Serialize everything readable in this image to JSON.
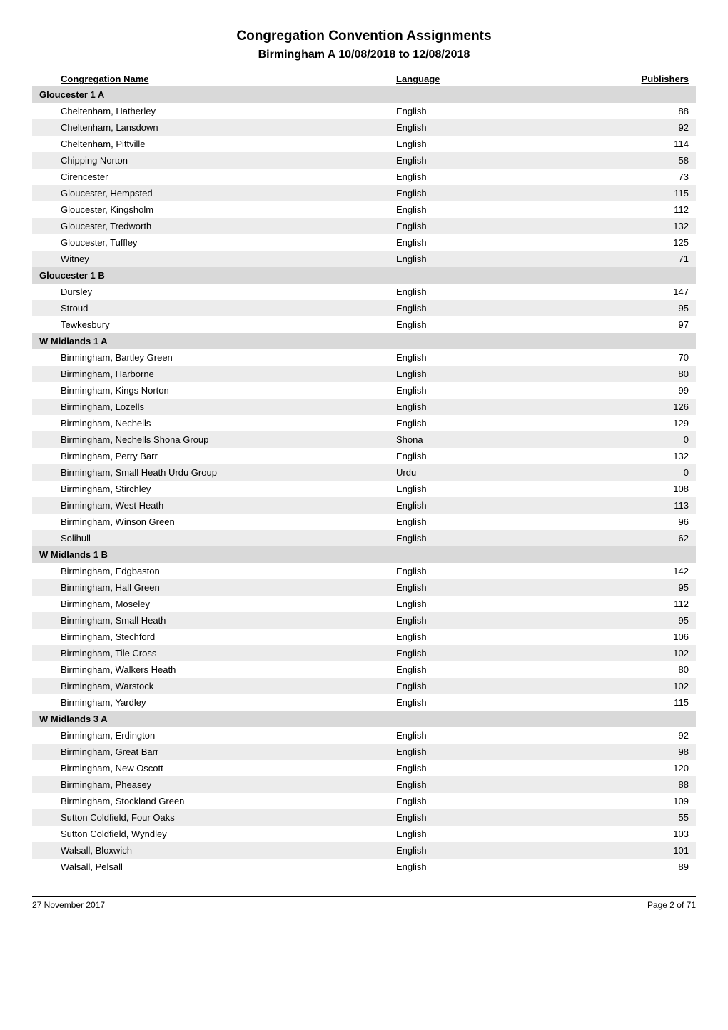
{
  "title": "Congregation Convention Assignments",
  "subtitle": "Birmingham A 10/08/2018 to 12/08/2018",
  "columns": {
    "name": "Congregation Name",
    "language": "Language",
    "publishers": "Publishers"
  },
  "colors": {
    "section_bg": "#d9d9d9",
    "row_shade_bg": "#ececec",
    "page_bg": "#ffffff",
    "text": "#000000"
  },
  "sections": [
    {
      "name": "Gloucester 1 A",
      "rows": [
        {
          "name": "Cheltenham, Hatherley",
          "language": "English",
          "publishers": 88,
          "shaded": false
        },
        {
          "name": "Cheltenham, Lansdown",
          "language": "English",
          "publishers": 92,
          "shaded": true
        },
        {
          "name": "Cheltenham, Pittville",
          "language": "English",
          "publishers": 114,
          "shaded": false
        },
        {
          "name": "Chipping Norton",
          "language": "English",
          "publishers": 58,
          "shaded": true
        },
        {
          "name": "Cirencester",
          "language": "English",
          "publishers": 73,
          "shaded": false
        },
        {
          "name": "Gloucester, Hempsted",
          "language": "English",
          "publishers": 115,
          "shaded": true
        },
        {
          "name": "Gloucester, Kingsholm",
          "language": "English",
          "publishers": 112,
          "shaded": false
        },
        {
          "name": "Gloucester, Tredworth",
          "language": "English",
          "publishers": 132,
          "shaded": true
        },
        {
          "name": "Gloucester, Tuffley",
          "language": "English",
          "publishers": 125,
          "shaded": false
        },
        {
          "name": "Witney",
          "language": "English",
          "publishers": 71,
          "shaded": true
        }
      ]
    },
    {
      "name": "Gloucester 1 B",
      "rows": [
        {
          "name": "Dursley",
          "language": "English",
          "publishers": 147,
          "shaded": false
        },
        {
          "name": "Stroud",
          "language": "English",
          "publishers": 95,
          "shaded": true
        },
        {
          "name": "Tewkesbury",
          "language": "English",
          "publishers": 97,
          "shaded": false
        }
      ]
    },
    {
      "name": "W Midlands 1 A",
      "rows": [
        {
          "name": "Birmingham, Bartley Green",
          "language": "English",
          "publishers": 70,
          "shaded": false
        },
        {
          "name": "Birmingham, Harborne",
          "language": "English",
          "publishers": 80,
          "shaded": true
        },
        {
          "name": "Birmingham, Kings Norton",
          "language": "English",
          "publishers": 99,
          "shaded": false
        },
        {
          "name": "Birmingham, Lozells",
          "language": "English",
          "publishers": 126,
          "shaded": true
        },
        {
          "name": "Birmingham, Nechells",
          "language": "English",
          "publishers": 129,
          "shaded": false
        },
        {
          "name": "Birmingham, Nechells Shona Group",
          "language": "Shona",
          "publishers": 0,
          "shaded": true
        },
        {
          "name": "Birmingham, Perry Barr",
          "language": "English",
          "publishers": 132,
          "shaded": false
        },
        {
          "name": "Birmingham, Small Heath Urdu Group",
          "language": "Urdu",
          "publishers": 0,
          "shaded": true
        },
        {
          "name": "Birmingham, Stirchley",
          "language": "English",
          "publishers": 108,
          "shaded": false
        },
        {
          "name": "Birmingham, West Heath",
          "language": "English",
          "publishers": 113,
          "shaded": true
        },
        {
          "name": "Birmingham, Winson Green",
          "language": "English",
          "publishers": 96,
          "shaded": false
        },
        {
          "name": "Solihull",
          "language": "English",
          "publishers": 62,
          "shaded": true
        }
      ]
    },
    {
      "name": "W Midlands 1 B",
      "rows": [
        {
          "name": "Birmingham, Edgbaston",
          "language": "English",
          "publishers": 142,
          "shaded": false
        },
        {
          "name": "Birmingham, Hall Green",
          "language": "English",
          "publishers": 95,
          "shaded": true
        },
        {
          "name": "Birmingham, Moseley",
          "language": "English",
          "publishers": 112,
          "shaded": false
        },
        {
          "name": "Birmingham, Small Heath",
          "language": "English",
          "publishers": 95,
          "shaded": true
        },
        {
          "name": "Birmingham, Stechford",
          "language": "English",
          "publishers": 106,
          "shaded": false
        },
        {
          "name": "Birmingham, Tile Cross",
          "language": "English",
          "publishers": 102,
          "shaded": true
        },
        {
          "name": "Birmingham, Walkers Heath",
          "language": "English",
          "publishers": 80,
          "shaded": false
        },
        {
          "name": "Birmingham, Warstock",
          "language": "English",
          "publishers": 102,
          "shaded": true
        },
        {
          "name": "Birmingham, Yardley",
          "language": "English",
          "publishers": 115,
          "shaded": false
        }
      ]
    },
    {
      "name": "W Midlands 3 A",
      "rows": [
        {
          "name": "Birmingham, Erdington",
          "language": "English",
          "publishers": 92,
          "shaded": false
        },
        {
          "name": "Birmingham, Great Barr",
          "language": "English",
          "publishers": 98,
          "shaded": true
        },
        {
          "name": "Birmingham, New Oscott",
          "language": "English",
          "publishers": 120,
          "shaded": false
        },
        {
          "name": "Birmingham, Pheasey",
          "language": "English",
          "publishers": 88,
          "shaded": true
        },
        {
          "name": "Birmingham, Stockland Green",
          "language": "English",
          "publishers": 109,
          "shaded": false
        },
        {
          "name": "Sutton Coldfield, Four Oaks",
          "language": "English",
          "publishers": 55,
          "shaded": true
        },
        {
          "name": "Sutton Coldfield, Wyndley",
          "language": "English",
          "publishers": 103,
          "shaded": false
        },
        {
          "name": "Walsall, Bloxwich",
          "language": "English",
          "publishers": 101,
          "shaded": true
        },
        {
          "name": "Walsall, Pelsall",
          "language": "English",
          "publishers": 89,
          "shaded": false
        }
      ]
    }
  ],
  "footer": {
    "date": "27 November 2017",
    "page": "Page 2 of 71"
  }
}
